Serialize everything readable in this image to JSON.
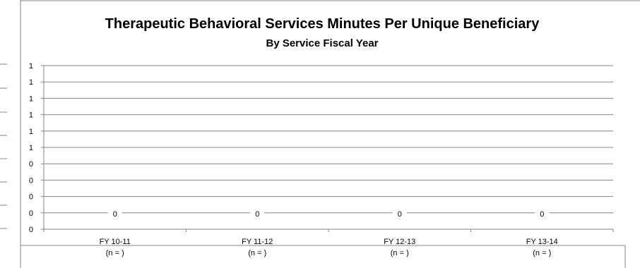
{
  "chart_data": {
    "type": "bar",
    "title": "Therapeutic Behavioral Services Minutes Per Unique Beneficiary",
    "subtitle": "By Service Fiscal Year",
    "categories": [
      "FY 10-11",
      "FY 11-12",
      "FY 12-13",
      "FY 13-14"
    ],
    "category_sublabels": [
      "(n = )",
      "(n = )",
      "(n = )",
      "(n = )"
    ],
    "series": [
      {
        "values": [
          0,
          0,
          0,
          0
        ]
      }
    ],
    "data_labels": [
      "0",
      "0",
      "0",
      "0"
    ],
    "y_tick_labels": [
      "0",
      "0",
      "0",
      "0",
      "0",
      "1",
      "1",
      "1",
      "1",
      "1",
      "1"
    ],
    "ylim": [
      0,
      1
    ],
    "grid": true,
    "legend": "none",
    "colors": {
      "gridline": "#868686",
      "frame": "#868686",
      "text": "#000000"
    }
  }
}
